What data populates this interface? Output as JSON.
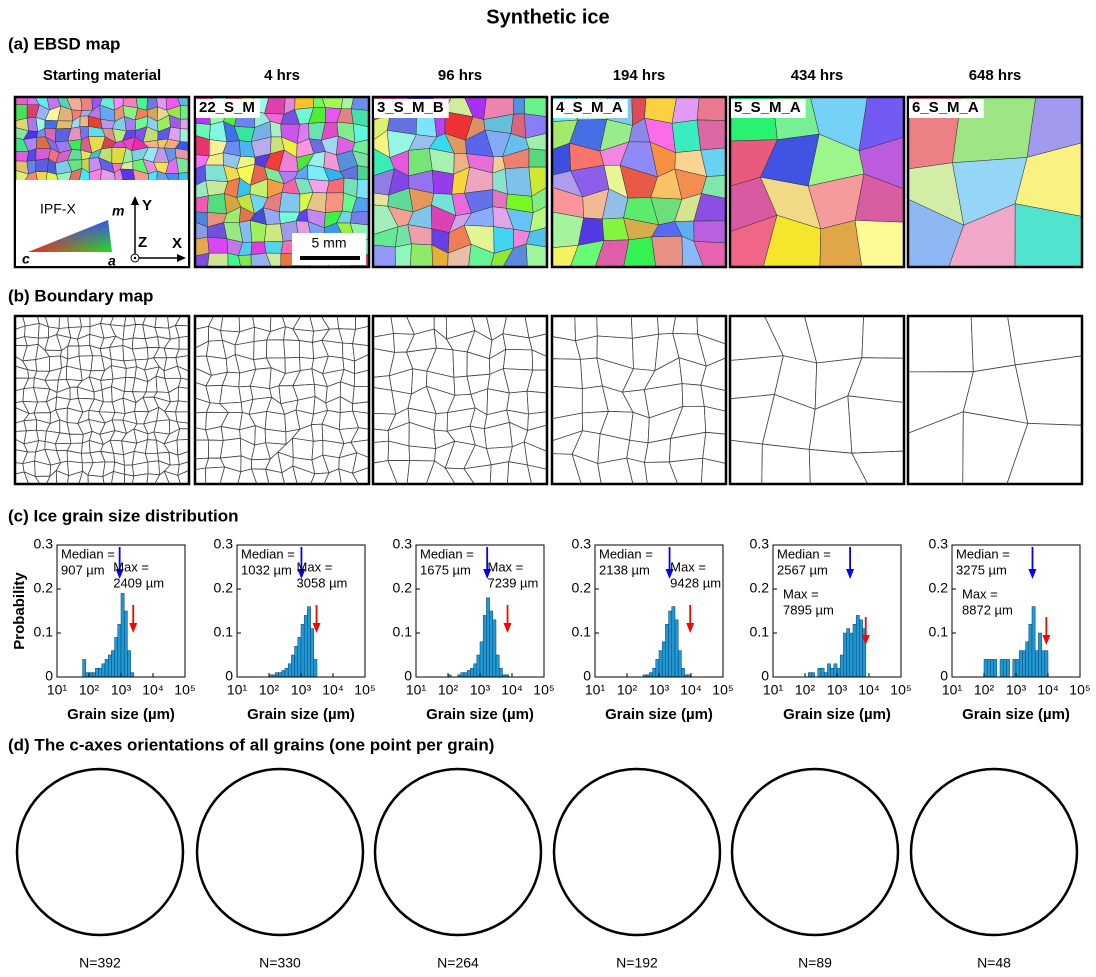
{
  "title": "Synthetic ice",
  "panel_a": {
    "label": "(a) EBSD map",
    "columns": [
      "Starting material",
      "4 hrs",
      "96 hrs",
      "194 hrs",
      "434 hrs",
      "648 hrs"
    ],
    "sample_ids": [
      "22_S_M",
      "3_S_M_B",
      "4_S_M_A",
      "5_S_M_A",
      "6_S_M_A"
    ],
    "legend": "IPF-X",
    "ipf_labels": [
      "m",
      "c",
      "a"
    ],
    "axes": [
      "Y",
      "Z",
      "X"
    ],
    "scale_bar": "5 mm"
  },
  "panel_b": {
    "label": "(b) Boundary map"
  },
  "panel_c": {
    "label": "(c) Ice grain size distribution"
  },
  "chart_data": [
    {
      "type": "histogram",
      "xlabel": "Grain size (µm)",
      "ylabel": "Probability",
      "color": "#1f9ad6",
      "bins": [
        63.1,
        79.4,
        100,
        125.9,
        158.5,
        199.5,
        251.2,
        316.2,
        398.1,
        501.2,
        631,
        794.3,
        1000,
        1258.9,
        1584.9,
        1995.3,
        2511.9
      ],
      "counts": [
        0.04,
        0.01,
        0.01,
        0.01,
        0.02,
        0.02,
        0.03,
        0.04,
        0.05,
        0.06,
        0.09,
        0.12,
        0.19,
        0.15,
        0.06,
        0.01
      ],
      "median": 907,
      "median_label": [
        "Median =",
        "907 µm"
      ],
      "max": 2409,
      "max_label": [
        "Max =",
        "2409 µm"
      ],
      "xlim": [
        10,
        100000
      ],
      "ylim": [
        0,
        0.3
      ],
      "log_x": true,
      "yticks": [
        0,
        0.1,
        0.2,
        0.3
      ],
      "xticks": [
        {
          "value": 10,
          "label": "10¹"
        },
        {
          "value": 100,
          "label": "10²"
        },
        {
          "value": 1000,
          "label": "10³"
        },
        {
          "value": 10000,
          "label": "10⁴"
        },
        {
          "value": 100000,
          "label": "10⁵"
        }
      ]
    },
    {
      "type": "histogram",
      "xlabel": "Grain size (µm)",
      "color": "#1f9ad6",
      "bins": [
        100,
        125.9,
        158.5,
        199.5,
        251.2,
        316.2,
        398.1,
        501.2,
        631,
        794.3,
        1000,
        1258.9,
        1584.9,
        1995.3,
        2511.9,
        3162.3
      ],
      "counts": [
        0.005,
        0.005,
        0.01,
        0.01,
        0.015,
        0.02,
        0.03,
        0.05,
        0.07,
        0.09,
        0.12,
        0.14,
        0.16,
        0.11,
        0.04
      ],
      "median": 1032,
      "median_label": [
        "Median =",
        "1032 µm"
      ],
      "max": 3058,
      "max_label": [
        "Max =",
        "3058 µm"
      ],
      "xlim": [
        10,
        100000
      ],
      "ylim": [
        0,
        0.3
      ],
      "log_x": true,
      "yticks": [
        0,
        0.1,
        0.2,
        0.3
      ],
      "xticks": [
        {
          "value": 10,
          "label": "10¹"
        },
        {
          "value": 100,
          "label": "10²"
        },
        {
          "value": 1000,
          "label": "10³"
        },
        {
          "value": 10000,
          "label": "10⁴"
        },
        {
          "value": 100000,
          "label": "10⁵"
        }
      ]
    },
    {
      "type": "histogram",
      "xlabel": "Grain size (µm)",
      "color": "#1f9ad6",
      "bins": [
        100,
        125.9,
        158.5,
        199.5,
        251.2,
        316.2,
        398.1,
        501.2,
        631,
        794.3,
        1000,
        1258.9,
        1584.9,
        1995.3,
        2511.9,
        3162.3,
        3981.1,
        5011.9,
        6309.6,
        7943.3
      ],
      "counts": [
        0.005,
        0,
        0,
        0.005,
        0.01,
        0.01,
        0.015,
        0.02,
        0.03,
        0.05,
        0.08,
        0.14,
        0.18,
        0.15,
        0.13,
        0.05,
        0.02,
        0.005,
        0.005
      ],
      "median": 1675,
      "median_label": [
        "Median =",
        "1675 µm"
      ],
      "max": 7239,
      "max_label": [
        "Max =",
        "7239 µm"
      ],
      "xlim": [
        10,
        100000
      ],
      "ylim": [
        0,
        0.3
      ],
      "log_x": true,
      "yticks": [
        0,
        0.1,
        0.2,
        0.3
      ],
      "xticks": [
        {
          "value": 10,
          "label": "10¹"
        },
        {
          "value": 100,
          "label": "10²"
        },
        {
          "value": 1000,
          "label": "10³"
        },
        {
          "value": 10000,
          "label": "10⁴"
        },
        {
          "value": 100000,
          "label": "10⁵"
        }
      ]
    },
    {
      "type": "histogram",
      "xlabel": "Grain size (µm)",
      "color": "#1f9ad6",
      "bins": [
        316.2,
        398.1,
        501.2,
        631,
        794.3,
        1000,
        1258.9,
        1584.9,
        1995.3,
        2511.9,
        3162.3,
        3981.1,
        5011.9,
        6309.6,
        7943.3,
        10000
      ],
      "counts": [
        0.005,
        0.005,
        0.01,
        0.02,
        0.04,
        0.06,
        0.08,
        0.12,
        0.15,
        0.16,
        0.13,
        0.06,
        0.02,
        0.005,
        0.005
      ],
      "median": 2138,
      "median_label": [
        "Median =",
        "2138 µm"
      ],
      "max": 9428,
      "max_label": [
        "Max =",
        "9428 µm"
      ],
      "xlim": [
        10,
        100000
      ],
      "ylim": [
        0,
        0.3
      ],
      "log_x": true,
      "yticks": [
        0,
        0.1,
        0.2,
        0.3
      ],
      "xticks": [
        {
          "value": 10,
          "label": "10¹"
        },
        {
          "value": 100,
          "label": "10²"
        },
        {
          "value": 1000,
          "label": "10³"
        },
        {
          "value": 10000,
          "label": "10⁴"
        },
        {
          "value": 100000,
          "label": "10⁵"
        }
      ]
    },
    {
      "type": "histogram",
      "xlabel": "Grain size (µm)",
      "color": "#1f9ad6",
      "bins": [
        100,
        125.9,
        158.5,
        199.5,
        251.2,
        316.2,
        398.1,
        501.2,
        631,
        794.3,
        1000,
        1258.9,
        1584.9,
        1995.3,
        2511.9,
        3162.3,
        3981.1,
        5011.9,
        6309.6,
        7943.3
      ],
      "counts": [
        0,
        0.01,
        0.01,
        0,
        0.02,
        0.02,
        0.01,
        0.03,
        0.02,
        0.03,
        0.02,
        0.05,
        0.1,
        0.11,
        0.1,
        0.12,
        0.14,
        0.13,
        0.11
      ],
      "median": 2567,
      "median_label": [
        "Median =",
        "2567 µm"
      ],
      "max": 7895,
      "max_label": [
        "Max =",
        "7895 µm"
      ],
      "xlim": [
        10,
        100000
      ],
      "ylim": [
        0,
        0.3
      ],
      "log_x": true,
      "yticks": [
        0,
        0.1,
        0.2,
        0.3
      ],
      "xticks": [
        {
          "value": 10,
          "label": "10¹"
        },
        {
          "value": 100,
          "label": "10²"
        },
        {
          "value": 1000,
          "label": "10³"
        },
        {
          "value": 10000,
          "label": "10⁴"
        },
        {
          "value": 100000,
          "label": "10⁵"
        }
      ]
    },
    {
      "type": "histogram",
      "xlabel": "Grain size (µm)",
      "color": "#1f9ad6",
      "bins": [
        100,
        125.9,
        158.5,
        199.5,
        251.2,
        316.2,
        398.1,
        501.2,
        631,
        794.3,
        1000,
        1258.9,
        1584.9,
        1995.3,
        2511.9,
        3162.3,
        3981.1,
        5011.9,
        6309.6,
        7943.3,
        10000
      ],
      "counts": [
        0.04,
        0.04,
        0.04,
        0.04,
        0,
        0.04,
        0.04,
        0.04,
        0,
        0.04,
        0.04,
        0.06,
        0.06,
        0.08,
        0.12,
        0.16,
        0.06,
        0.1,
        0.06,
        0.06
      ],
      "median": 3275,
      "median_label": [
        "Median =",
        "3275 µm"
      ],
      "max": 8872,
      "max_label": [
        "Max =",
        "8872 µm"
      ],
      "xlim": [
        10,
        100000
      ],
      "ylim": [
        0,
        0.3
      ],
      "log_x": true,
      "yticks": [
        0,
        0.1,
        0.2,
        0.3
      ],
      "xticks": [
        {
          "value": 10,
          "label": "10¹"
        },
        {
          "value": 100,
          "label": "10²"
        },
        {
          "value": 1000,
          "label": "10³"
        },
        {
          "value": 10000,
          "label": "10⁴"
        },
        {
          "value": 100000,
          "label": "10⁵"
        }
      ]
    }
  ],
  "panel_d": {
    "label": "(d) The c-axes orientations of all grains (one point per grain)",
    "counts": [
      "N=392",
      "N=330",
      "N=264",
      "N=192",
      "N=89",
      "N=48"
    ]
  }
}
